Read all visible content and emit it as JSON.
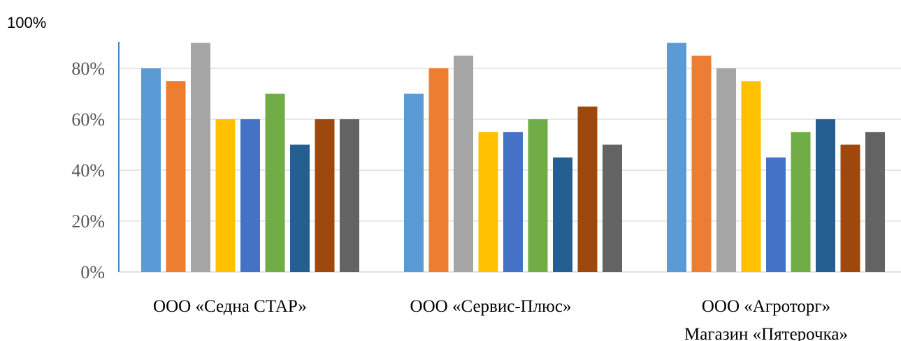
{
  "chart_data": {
    "type": "bar",
    "ylim": [
      0,
      90
    ],
    "grid": true,
    "y_ticks": [
      {
        "value": 0,
        "label": "0%"
      },
      {
        "value": 20,
        "label": "20%"
      },
      {
        "value": 40,
        "label": "40%"
      },
      {
        "value": 60,
        "label": "60%"
      },
      {
        "value": 80,
        "label": "80%"
      }
    ],
    "y_top_label": "100%",
    "categories": [
      {
        "lines": [
          "ООО «Седна СТАР»"
        ]
      },
      {
        "lines": [
          "ООО «Сервис-Плюс»"
        ]
      },
      {
        "lines": [
          "ООО «Агроторг»",
          "Магазин «Пятерочка»"
        ]
      }
    ],
    "series": [
      {
        "color": "#5b9bd5",
        "values": [
          80,
          70,
          90
        ]
      },
      {
        "color": "#ed7d31",
        "values": [
          75,
          80,
          85
        ]
      },
      {
        "color": "#a5a5a5",
        "values": [
          90,
          85,
          80
        ]
      },
      {
        "color": "#ffc000",
        "values": [
          60,
          55,
          75
        ]
      },
      {
        "color": "#4472c4",
        "values": [
          60,
          55,
          45
        ]
      },
      {
        "color": "#70ad47",
        "values": [
          70,
          60,
          55
        ]
      },
      {
        "color": "#255e91",
        "values": [
          50,
          45,
          60
        ]
      },
      {
        "color": "#9e480e",
        "values": [
          60,
          65,
          50
        ]
      },
      {
        "color": "#636363",
        "values": [
          60,
          50,
          55
        ]
      }
    ]
  }
}
